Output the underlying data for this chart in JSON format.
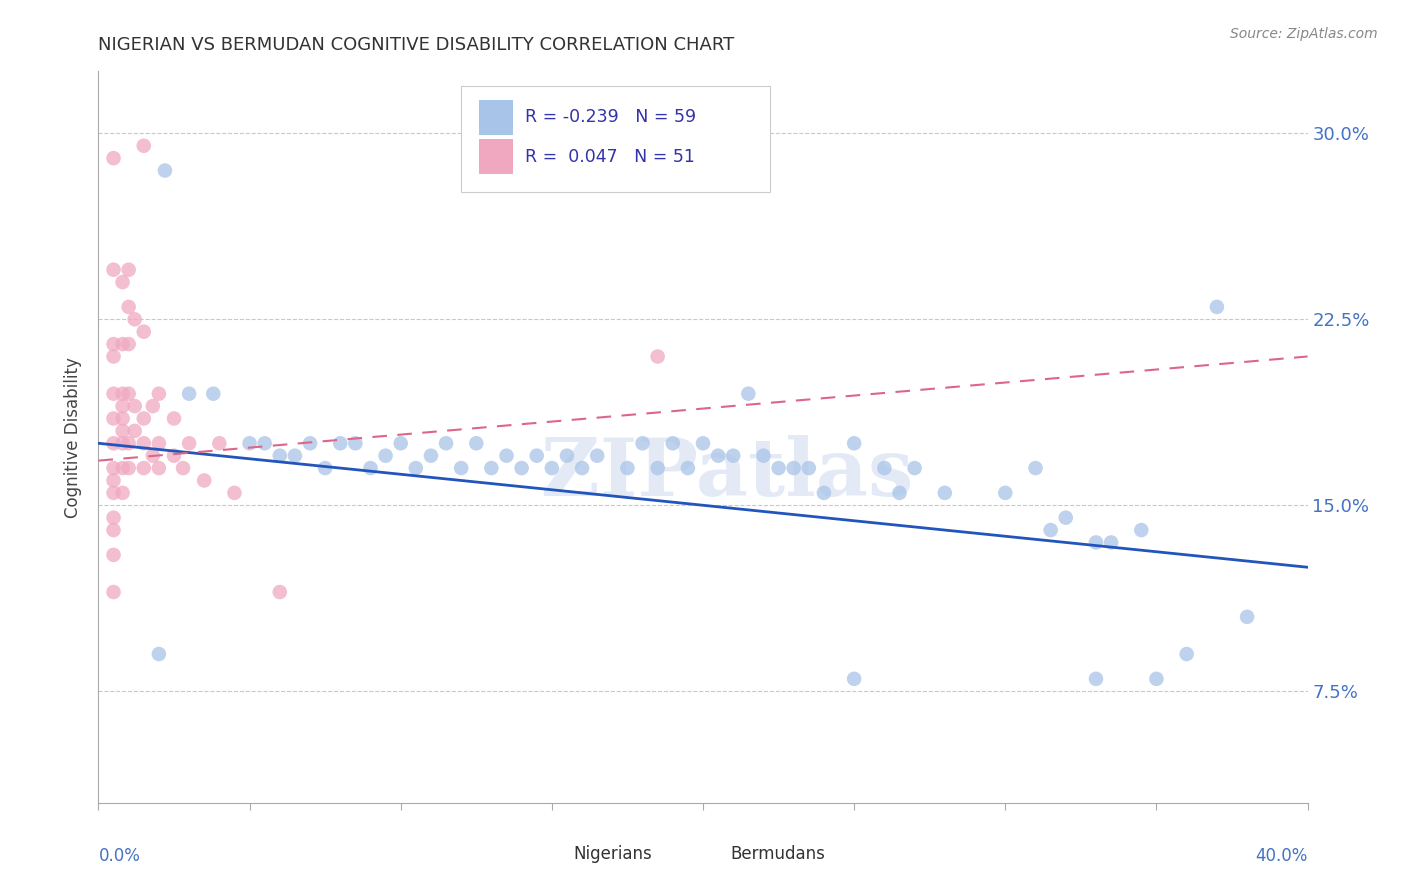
{
  "title": "NIGERIAN VS BERMUDAN COGNITIVE DISABILITY CORRELATION CHART",
  "source": "Source: ZipAtlas.com",
  "ylabel": "Cognitive Disability",
  "yticks": [
    0.075,
    0.15,
    0.225,
    0.3
  ],
  "ytick_labels": [
    "7.5%",
    "15.0%",
    "22.5%",
    "30.0%"
  ],
  "xlim": [
    0.0,
    0.4
  ],
  "ylim": [
    0.03,
    0.325
  ],
  "watermark": "ZIPatlas",
  "nigerian_color": "#a8c4e8",
  "bermudan_color": "#f0a8c0",
  "nigerian_line_color": "#2255bb",
  "bermudan_line_color": "#dd6688",
  "nig_line_x": [
    0.0,
    0.4
  ],
  "nig_line_y": [
    0.175,
    0.125
  ],
  "ber_line_x": [
    0.0,
    0.4
  ],
  "ber_line_y": [
    0.168,
    0.21
  ],
  "nigerian_points": [
    [
      0.022,
      0.285
    ],
    [
      0.03,
      0.195
    ],
    [
      0.038,
      0.195
    ],
    [
      0.05,
      0.175
    ],
    [
      0.055,
      0.175
    ],
    [
      0.06,
      0.17
    ],
    [
      0.065,
      0.17
    ],
    [
      0.07,
      0.175
    ],
    [
      0.075,
      0.165
    ],
    [
      0.08,
      0.175
    ],
    [
      0.085,
      0.175
    ],
    [
      0.09,
      0.165
    ],
    [
      0.095,
      0.17
    ],
    [
      0.1,
      0.175
    ],
    [
      0.105,
      0.165
    ],
    [
      0.11,
      0.17
    ],
    [
      0.115,
      0.175
    ],
    [
      0.12,
      0.165
    ],
    [
      0.125,
      0.175
    ],
    [
      0.13,
      0.165
    ],
    [
      0.135,
      0.17
    ],
    [
      0.14,
      0.165
    ],
    [
      0.145,
      0.17
    ],
    [
      0.15,
      0.165
    ],
    [
      0.155,
      0.17
    ],
    [
      0.16,
      0.165
    ],
    [
      0.165,
      0.17
    ],
    [
      0.175,
      0.165
    ],
    [
      0.18,
      0.175
    ],
    [
      0.185,
      0.165
    ],
    [
      0.19,
      0.175
    ],
    [
      0.195,
      0.165
    ],
    [
      0.2,
      0.175
    ],
    [
      0.205,
      0.17
    ],
    [
      0.21,
      0.17
    ],
    [
      0.215,
      0.195
    ],
    [
      0.22,
      0.17
    ],
    [
      0.225,
      0.165
    ],
    [
      0.23,
      0.165
    ],
    [
      0.235,
      0.165
    ],
    [
      0.24,
      0.155
    ],
    [
      0.25,
      0.175
    ],
    [
      0.26,
      0.165
    ],
    [
      0.265,
      0.155
    ],
    [
      0.27,
      0.165
    ],
    [
      0.28,
      0.155
    ],
    [
      0.3,
      0.155
    ],
    [
      0.31,
      0.165
    ],
    [
      0.315,
      0.14
    ],
    [
      0.32,
      0.145
    ],
    [
      0.33,
      0.135
    ],
    [
      0.335,
      0.135
    ],
    [
      0.345,
      0.14
    ],
    [
      0.35,
      0.08
    ],
    [
      0.36,
      0.09
    ],
    [
      0.37,
      0.23
    ],
    [
      0.38,
      0.105
    ],
    [
      0.02,
      0.09
    ],
    [
      0.25,
      0.08
    ],
    [
      0.33,
      0.08
    ]
  ],
  "bermudan_points": [
    [
      0.005,
      0.245
    ],
    [
      0.01,
      0.245
    ],
    [
      0.005,
      0.29
    ],
    [
      0.005,
      0.215
    ],
    [
      0.005,
      0.21
    ],
    [
      0.005,
      0.195
    ],
    [
      0.005,
      0.185
    ],
    [
      0.005,
      0.175
    ],
    [
      0.005,
      0.165
    ],
    [
      0.005,
      0.16
    ],
    [
      0.005,
      0.155
    ],
    [
      0.005,
      0.145
    ],
    [
      0.005,
      0.14
    ],
    [
      0.005,
      0.13
    ],
    [
      0.008,
      0.24
    ],
    [
      0.008,
      0.215
    ],
    [
      0.008,
      0.195
    ],
    [
      0.008,
      0.185
    ],
    [
      0.008,
      0.18
    ],
    [
      0.008,
      0.175
    ],
    [
      0.008,
      0.165
    ],
    [
      0.008,
      0.155
    ],
    [
      0.01,
      0.23
    ],
    [
      0.01,
      0.215
    ],
    [
      0.01,
      0.195
    ],
    [
      0.01,
      0.175
    ],
    [
      0.01,
      0.165
    ],
    [
      0.012,
      0.225
    ],
    [
      0.012,
      0.19
    ],
    [
      0.012,
      0.18
    ],
    [
      0.015,
      0.295
    ],
    [
      0.015,
      0.22
    ],
    [
      0.015,
      0.185
    ],
    [
      0.015,
      0.175
    ],
    [
      0.015,
      0.165
    ],
    [
      0.018,
      0.19
    ],
    [
      0.018,
      0.17
    ],
    [
      0.02,
      0.195
    ],
    [
      0.02,
      0.175
    ],
    [
      0.02,
      0.165
    ],
    [
      0.025,
      0.185
    ],
    [
      0.025,
      0.17
    ],
    [
      0.03,
      0.175
    ],
    [
      0.035,
      0.16
    ],
    [
      0.04,
      0.175
    ],
    [
      0.045,
      0.155
    ],
    [
      0.06,
      0.115
    ],
    [
      0.005,
      0.115
    ],
    [
      0.185,
      0.21
    ],
    [
      0.008,
      0.19
    ],
    [
      0.028,
      0.165
    ]
  ]
}
